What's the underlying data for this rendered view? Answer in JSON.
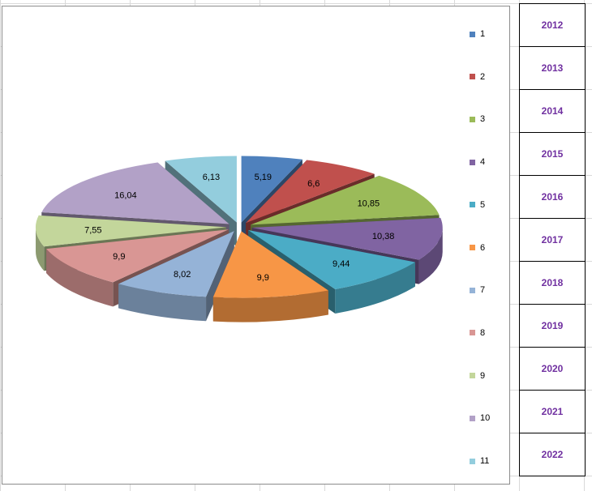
{
  "chart_data": {
    "type": "pie",
    "title": "",
    "exploded": true,
    "three_d": true,
    "categories": [
      "1",
      "2",
      "3",
      "4",
      "5",
      "6",
      "7",
      "8",
      "9",
      "10",
      "11"
    ],
    "values": [
      5.19,
      6.6,
      10.85,
      10.38,
      9.44,
      9.9,
      8.02,
      9.9,
      7.55,
      16.04,
      6.13
    ],
    "data_labels": [
      "5,19",
      "6,6",
      "10,85",
      "10,38",
      "9,44",
      "9,9",
      "8,02",
      "9,9",
      "7,55",
      "16,04",
      "6,13"
    ],
    "colors": [
      "#4f81bd",
      "#c0504d",
      "#9bbb59",
      "#8064a2",
      "#4bacc6",
      "#f79646",
      "#95b3d7",
      "#d99694",
      "#c3d69b",
      "#b2a1c7",
      "#93cddd"
    ],
    "legend_position": "right"
  },
  "year_column": {
    "years": [
      "2012",
      "2013",
      "2014",
      "2015",
      "2016",
      "2017",
      "2018",
      "2019",
      "2020",
      "2021",
      "2022"
    ]
  }
}
